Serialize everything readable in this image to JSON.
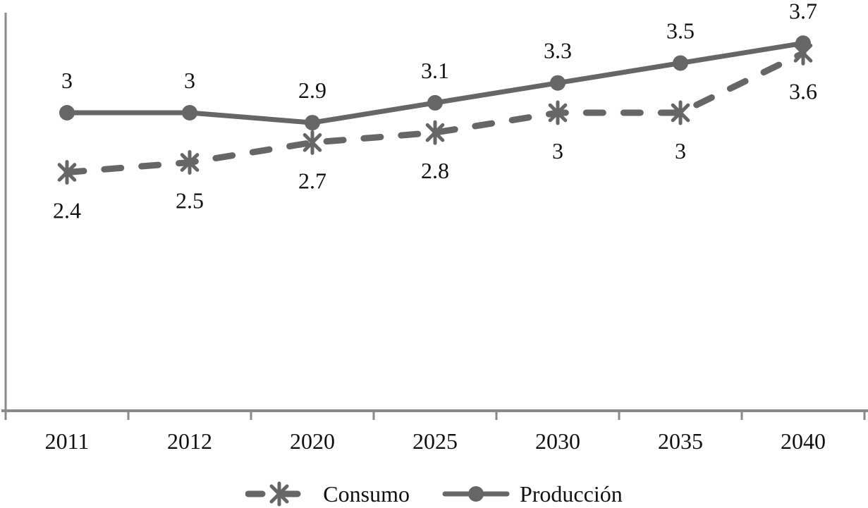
{
  "chart_data": {
    "type": "line",
    "categories": [
      "2011",
      "2012",
      "2020",
      "2025",
      "2030",
      "2035",
      "2040"
    ],
    "series": [
      {
        "name": "Consumo",
        "values": [
          2.4,
          2.5,
          2.7,
          2.8,
          3,
          3,
          3.6
        ],
        "point_labels": [
          "2.4",
          "2.5",
          "2.7",
          "2.8",
          "3",
          "3",
          "3.6"
        ],
        "line_style": "dashed",
        "marker": "asterisk",
        "label_position": "below"
      },
      {
        "name": "Producción",
        "values": [
          3,
          3,
          2.9,
          3.1,
          3.3,
          3.5,
          3.7
        ],
        "point_labels": [
          "3",
          "3",
          "2.9",
          "3.1",
          "3.3",
          "3.5",
          "3.7"
        ],
        "line_style": "solid",
        "marker": "circle",
        "label_position": "above"
      }
    ],
    "title": "",
    "xlabel": "",
    "ylabel": "",
    "ylim": [
      0,
      4
    ],
    "y_tick_labels_visible": false,
    "grid": false,
    "legend_position": "bottom",
    "colors": {
      "series": "#666666",
      "axis": "#8a8a8a",
      "text": "#111111"
    }
  }
}
